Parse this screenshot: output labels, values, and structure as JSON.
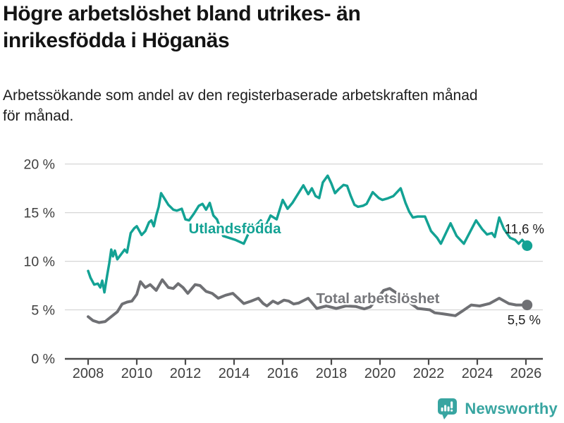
{
  "header": {
    "title_lines": [
      "Högre arbetslöshet bland utrikes- än",
      "inrikesfödda i Höganäs"
    ],
    "subtitle_lines": [
      "Arbetssökande som andel av den registerbaserade arbetskraften månad",
      "för månad."
    ]
  },
  "footer": {
    "brand": "Newsworthy",
    "brand_color": "#38a5a1",
    "logo_icon": "bar-chart-speech-bubble-icon"
  },
  "chart_data": {
    "type": "line",
    "title": "Högre arbetslöshet bland utrikes- än inrikesfödda i Höganäs",
    "subtitle": "Arbetssökande som andel av den registerbaserade arbetskraften månad för månad.",
    "unit": "%",
    "grid": true,
    "legend_position": "inline-labels",
    "x_axis": {
      "ticks": [
        2008,
        2010,
        2012,
        2014,
        2016,
        2018,
        2020,
        2022,
        2024,
        2026
      ],
      "tick_labels": [
        "2008",
        "2010",
        "2012",
        "2014",
        "2016",
        "2018",
        "2020",
        "2022",
        "2024",
        "2026"
      ],
      "range": [
        2008,
        2026.1
      ]
    },
    "y_axis": {
      "ticks": [
        0,
        5,
        10,
        15,
        20
      ],
      "tick_labels": [
        "0 %",
        "5 %",
        "10 %",
        "15 %",
        "20 %"
      ],
      "range": [
        0,
        20
      ]
    },
    "series": [
      {
        "id": "utlandsfodda",
        "name": "Utlandsfödda",
        "color": "#13a294",
        "label_color": "#13a294",
        "end_label": "11,6 %",
        "end_value": 11.6,
        "points": [
          [
            2008.0,
            9.0
          ],
          [
            2008.1,
            8.3
          ],
          [
            2008.25,
            7.6
          ],
          [
            2008.4,
            7.7
          ],
          [
            2008.5,
            7.3
          ],
          [
            2008.58,
            8.0
          ],
          [
            2008.67,
            6.8
          ],
          [
            2008.78,
            8.5
          ],
          [
            2008.87,
            9.8
          ],
          [
            2008.95,
            11.2
          ],
          [
            2009.02,
            10.5
          ],
          [
            2009.1,
            11.1
          ],
          [
            2009.2,
            10.2
          ],
          [
            2009.35,
            10.7
          ],
          [
            2009.5,
            11.2
          ],
          [
            2009.6,
            10.9
          ],
          [
            2009.75,
            12.9
          ],
          [
            2009.9,
            13.4
          ],
          [
            2010.0,
            13.6
          ],
          [
            2010.2,
            12.7
          ],
          [
            2010.35,
            13.1
          ],
          [
            2010.5,
            14.0
          ],
          [
            2010.6,
            14.2
          ],
          [
            2010.7,
            13.6
          ],
          [
            2010.8,
            14.7
          ],
          [
            2010.9,
            15.6
          ],
          [
            2011.0,
            17.0
          ],
          [
            2011.15,
            16.4
          ],
          [
            2011.3,
            15.8
          ],
          [
            2011.5,
            15.3
          ],
          [
            2011.65,
            15.2
          ],
          [
            2011.85,
            15.4
          ],
          [
            2012.0,
            14.3
          ],
          [
            2012.15,
            14.2
          ],
          [
            2012.35,
            14.9
          ],
          [
            2012.55,
            15.7
          ],
          [
            2012.7,
            15.9
          ],
          [
            2012.85,
            15.3
          ],
          [
            2013.0,
            16.0
          ],
          [
            2013.15,
            14.7
          ],
          [
            2013.3,
            14.3
          ],
          [
            2013.55,
            12.6
          ],
          [
            2013.8,
            12.4
          ],
          [
            2014.05,
            12.2
          ],
          [
            2014.4,
            11.8
          ],
          [
            2014.6,
            12.9
          ],
          [
            2014.85,
            13.5
          ],
          [
            2015.1,
            14.2
          ],
          [
            2015.3,
            13.6
          ],
          [
            2015.5,
            14.7
          ],
          [
            2015.75,
            14.3
          ],
          [
            2016.0,
            16.3
          ],
          [
            2016.2,
            15.4
          ],
          [
            2016.4,
            16.0
          ],
          [
            2016.6,
            16.8
          ],
          [
            2016.85,
            17.8
          ],
          [
            2017.05,
            16.9
          ],
          [
            2017.2,
            17.5
          ],
          [
            2017.35,
            16.7
          ],
          [
            2017.5,
            16.5
          ],
          [
            2017.65,
            18.1
          ],
          [
            2017.85,
            18.8
          ],
          [
            2018.0,
            18.0
          ],
          [
            2018.15,
            17.0
          ],
          [
            2018.3,
            17.4
          ],
          [
            2018.5,
            17.85
          ],
          [
            2018.65,
            17.75
          ],
          [
            2018.8,
            16.7
          ],
          [
            2018.95,
            15.8
          ],
          [
            2019.1,
            15.6
          ],
          [
            2019.3,
            15.7
          ],
          [
            2019.45,
            15.9
          ],
          [
            2019.7,
            17.1
          ],
          [
            2019.95,
            16.5
          ],
          [
            2020.1,
            16.3
          ],
          [
            2020.3,
            16.45
          ],
          [
            2020.55,
            16.7
          ],
          [
            2020.85,
            17.5
          ],
          [
            2021.05,
            16.0
          ],
          [
            2021.2,
            15.1
          ],
          [
            2021.35,
            14.5
          ],
          [
            2021.55,
            14.6
          ],
          [
            2021.85,
            14.6
          ],
          [
            2022.1,
            13.1
          ],
          [
            2022.35,
            12.4
          ],
          [
            2022.5,
            11.8
          ],
          [
            2022.9,
            13.9
          ],
          [
            2023.15,
            12.6
          ],
          [
            2023.3,
            12.2
          ],
          [
            2023.45,
            11.8
          ],
          [
            2023.95,
            14.2
          ],
          [
            2024.2,
            13.3
          ],
          [
            2024.4,
            12.75
          ],
          [
            2024.6,
            12.9
          ],
          [
            2024.72,
            12.5
          ],
          [
            2024.9,
            14.5
          ],
          [
            2025.1,
            13.3
          ],
          [
            2025.35,
            12.4
          ],
          [
            2025.55,
            12.2
          ],
          [
            2025.7,
            11.8
          ],
          [
            2025.85,
            12.2
          ],
          [
            2026.05,
            11.6
          ]
        ]
      },
      {
        "id": "total-arbetsloshet",
        "name": "Total arbetslöshet",
        "color": "#6f7074",
        "label_color": "#76777b",
        "end_label": "5,5 %",
        "end_value": 5.5,
        "points": [
          [
            2008.0,
            4.3
          ],
          [
            2008.2,
            3.9
          ],
          [
            2008.45,
            3.7
          ],
          [
            2008.7,
            3.8
          ],
          [
            2009.0,
            4.4
          ],
          [
            2009.2,
            4.8
          ],
          [
            2009.4,
            5.6
          ],
          [
            2009.6,
            5.8
          ],
          [
            2009.8,
            5.9
          ],
          [
            2010.0,
            6.6
          ],
          [
            2010.15,
            7.9
          ],
          [
            2010.35,
            7.3
          ],
          [
            2010.55,
            7.6
          ],
          [
            2010.8,
            7.0
          ],
          [
            2011.05,
            8.1
          ],
          [
            2011.3,
            7.3
          ],
          [
            2011.5,
            7.2
          ],
          [
            2011.7,
            7.7
          ],
          [
            2011.9,
            7.3
          ],
          [
            2012.1,
            6.7
          ],
          [
            2012.4,
            7.6
          ],
          [
            2012.6,
            7.5
          ],
          [
            2012.85,
            6.9
          ],
          [
            2013.1,
            6.7
          ],
          [
            2013.35,
            6.2
          ],
          [
            2013.65,
            6.5
          ],
          [
            2013.95,
            6.7
          ],
          [
            2014.4,
            5.65
          ],
          [
            2014.7,
            5.9
          ],
          [
            2015.0,
            6.2
          ],
          [
            2015.2,
            5.65
          ],
          [
            2015.35,
            5.4
          ],
          [
            2015.6,
            5.9
          ],
          [
            2015.8,
            5.65
          ],
          [
            2016.05,
            6.0
          ],
          [
            2016.25,
            5.9
          ],
          [
            2016.45,
            5.6
          ],
          [
            2016.65,
            5.7
          ],
          [
            2017.05,
            6.2
          ],
          [
            2017.4,
            5.15
          ],
          [
            2017.8,
            5.4
          ],
          [
            2018.2,
            5.15
          ],
          [
            2018.6,
            5.4
          ],
          [
            2019.0,
            5.35
          ],
          [
            2019.35,
            5.1
          ],
          [
            2019.6,
            5.3
          ],
          [
            2019.9,
            6.2
          ],
          [
            2020.15,
            7.0
          ],
          [
            2020.4,
            7.2
          ],
          [
            2020.7,
            6.7
          ],
          [
            2021.0,
            6.3
          ],
          [
            2021.3,
            5.6
          ],
          [
            2021.55,
            5.15
          ],
          [
            2022.05,
            5.0
          ],
          [
            2022.25,
            4.7
          ],
          [
            2022.55,
            4.6
          ],
          [
            2023.1,
            4.4
          ],
          [
            2023.4,
            4.9
          ],
          [
            2023.75,
            5.5
          ],
          [
            2024.1,
            5.4
          ],
          [
            2024.5,
            5.65
          ],
          [
            2024.9,
            6.2
          ],
          [
            2025.3,
            5.65
          ],
          [
            2025.6,
            5.5
          ],
          [
            2026.05,
            5.5
          ]
        ]
      }
    ]
  }
}
